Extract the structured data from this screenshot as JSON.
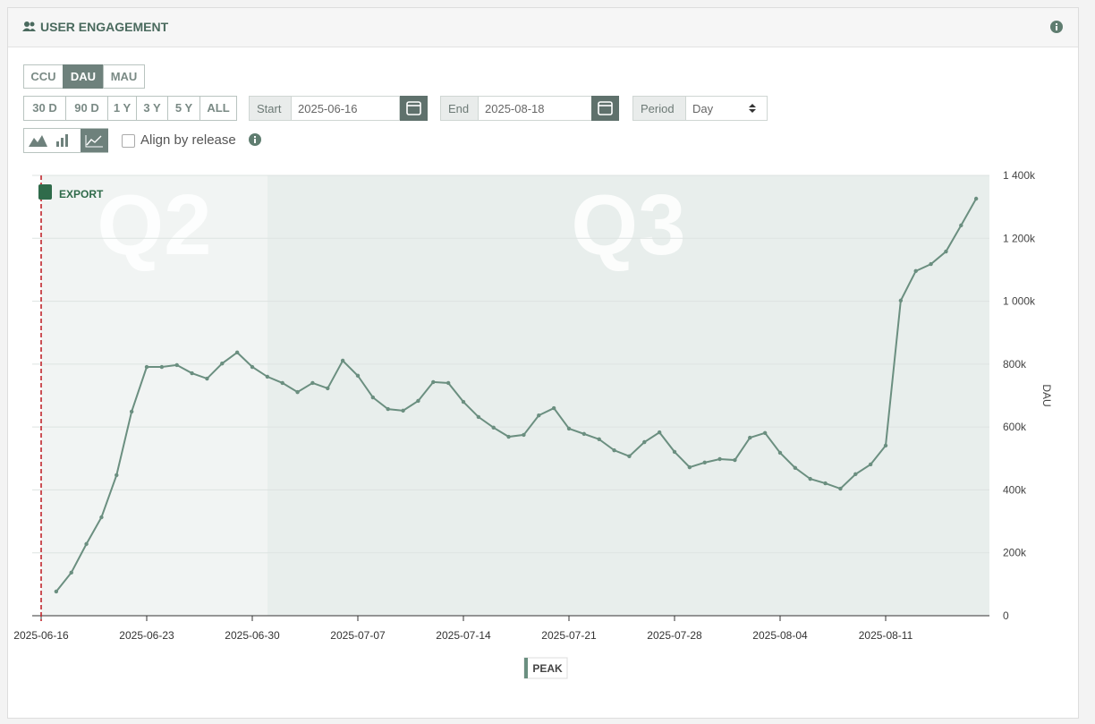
{
  "panel": {
    "title": "USER ENGAGEMENT",
    "metrics": [
      {
        "label": "CCU",
        "active": false
      },
      {
        "label": "DAU",
        "active": true
      },
      {
        "label": "MAU",
        "active": false
      }
    ],
    "ranges": [
      "30 D",
      "90 D",
      "1 Y",
      "3 Y",
      "5 Y",
      "ALL"
    ],
    "start": {
      "label": "Start",
      "value": "2025-06-16"
    },
    "end": {
      "label": "End",
      "value": "2025-08-18"
    },
    "period": {
      "label": "Period",
      "value": "Day"
    },
    "align_label": "Align by release",
    "export_label": "EXPORT"
  },
  "chart_data": {
    "type": "line",
    "y_label": "DAU",
    "x": [
      "2025-06-17",
      "2025-06-18",
      "2025-06-19",
      "2025-06-20",
      "2025-06-21",
      "2025-06-22",
      "2025-06-23",
      "2025-06-24",
      "2025-06-25",
      "2025-06-26",
      "2025-06-27",
      "2025-06-28",
      "2025-06-29",
      "2025-06-30",
      "2025-07-01",
      "2025-07-02",
      "2025-07-03",
      "2025-07-04",
      "2025-07-05",
      "2025-07-06",
      "2025-07-07",
      "2025-07-08",
      "2025-07-09",
      "2025-07-10",
      "2025-07-11",
      "2025-07-12",
      "2025-07-13",
      "2025-07-14",
      "2025-07-15",
      "2025-07-16",
      "2025-07-17",
      "2025-07-18",
      "2025-07-19",
      "2025-07-20",
      "2025-07-21",
      "2025-07-22",
      "2025-07-23",
      "2025-07-24",
      "2025-07-25",
      "2025-07-26",
      "2025-07-27",
      "2025-07-28",
      "2025-07-29",
      "2025-07-30",
      "2025-07-31",
      "2025-08-01",
      "2025-08-02",
      "2025-08-03",
      "2025-08-04",
      "2025-08-05",
      "2025-08-06",
      "2025-08-07",
      "2025-08-08",
      "2025-08-09",
      "2025-08-10",
      "2025-08-11",
      "2025-08-12",
      "2025-08-13",
      "2025-08-14",
      "2025-08-15",
      "2025-08-16",
      "2025-08-17"
    ],
    "series": [
      {
        "name": "PEAK",
        "color": "#6b8f80",
        "values": [
          77000,
          137000,
          228000,
          313000,
          447000,
          649000,
          791000,
          791000,
          797000,
          771000,
          754000,
          802000,
          837000,
          791000,
          760000,
          740000,
          711000,
          740000,
          723000,
          811000,
          763000,
          694000,
          657000,
          652000,
          683000,
          743000,
          740000,
          680000,
          632000,
          598000,
          569000,
          575000,
          637000,
          660000,
          595000,
          578000,
          561000,
          526000,
          507000,
          552000,
          583000,
          521000,
          472000,
          487000,
          498000,
          495000,
          566000,
          581000,
          518000,
          470000,
          435000,
          421000,
          404000,
          450000,
          481000,
          541000,
          1002000,
          1096000,
          1118000,
          1158000,
          1241000,
          1326000
        ]
      }
    ],
    "xlim": [
      "2025-06-16",
      "2025-08-18"
    ],
    "xticks": [
      "2025-06-16",
      "2025-06-23",
      "2025-06-30",
      "2025-07-07",
      "2025-07-14",
      "2025-07-21",
      "2025-07-28",
      "2025-08-04",
      "2025-08-11"
    ],
    "ylim": [
      0,
      1400000
    ],
    "yticks": [
      0,
      {
        "value": 200000,
        "label": "200k"
      },
      {
        "value": 400000,
        "label": "400k"
      },
      {
        "value": 600000,
        "label": "600k"
      },
      {
        "value": 800000,
        "label": "800k"
      },
      {
        "value": 1000000,
        "label": "1 000k"
      },
      {
        "value": 1200000,
        "label": "1 200k"
      },
      {
        "value": 1400000,
        "label": "1 400k"
      }
    ],
    "grid": true,
    "bands": [
      {
        "label": "Q2",
        "start": "2025-06-16",
        "end": "2025-07-01",
        "color": "#f1f4f3"
      },
      {
        "label": "Q3",
        "start": "2025-07-01",
        "end": "2025-08-18",
        "color": "#e8eeec"
      }
    ],
    "release_line": "2025-06-16"
  }
}
